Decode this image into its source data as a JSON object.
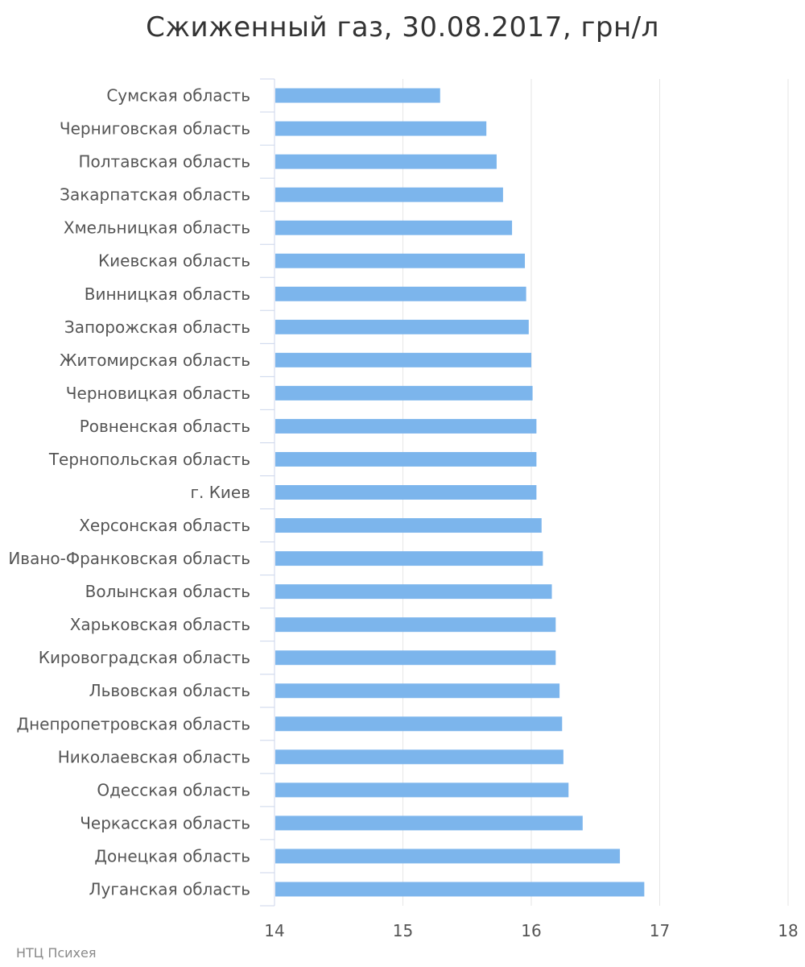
{
  "chart_data": {
    "type": "bar",
    "orientation": "horizontal",
    "title": "Сжиженный газ, 30.08.2017, грн/л",
    "xlabel": "",
    "ylabel": "",
    "xlim": [
      14,
      18
    ],
    "x_ticks": [
      "14",
      "15",
      "16",
      "17",
      "18"
    ],
    "grid": true,
    "bar_color": "#7cb5ec",
    "categories": [
      "Сумская область",
      "Черниговская область",
      "Полтавская область",
      "Закарпатская область",
      "Хмельницкая область",
      "Киевская область",
      "Винницкая область",
      "Запорожская область",
      "Житомирская область",
      "Черновицкая область",
      "Ровненская область",
      "Тернопольская область",
      "г. Киев",
      "Херсонская область",
      "Ивано-Франковская область",
      "Волынская область",
      "Харьковская область",
      "Кировоградская область",
      "Львовская область",
      "Днепропетровская область",
      "Николаевская область",
      "Одесская область",
      "Черкасская область",
      "Донецкая область",
      "Луганская область"
    ],
    "values": [
      15.29,
      15.65,
      15.73,
      15.78,
      15.85,
      15.95,
      15.96,
      15.98,
      16.0,
      16.01,
      16.04,
      16.04,
      16.04,
      16.08,
      16.09,
      16.16,
      16.19,
      16.19,
      16.22,
      16.24,
      16.25,
      16.29,
      16.4,
      16.69,
      16.88
    ]
  },
  "credit": "НТЦ Психея"
}
